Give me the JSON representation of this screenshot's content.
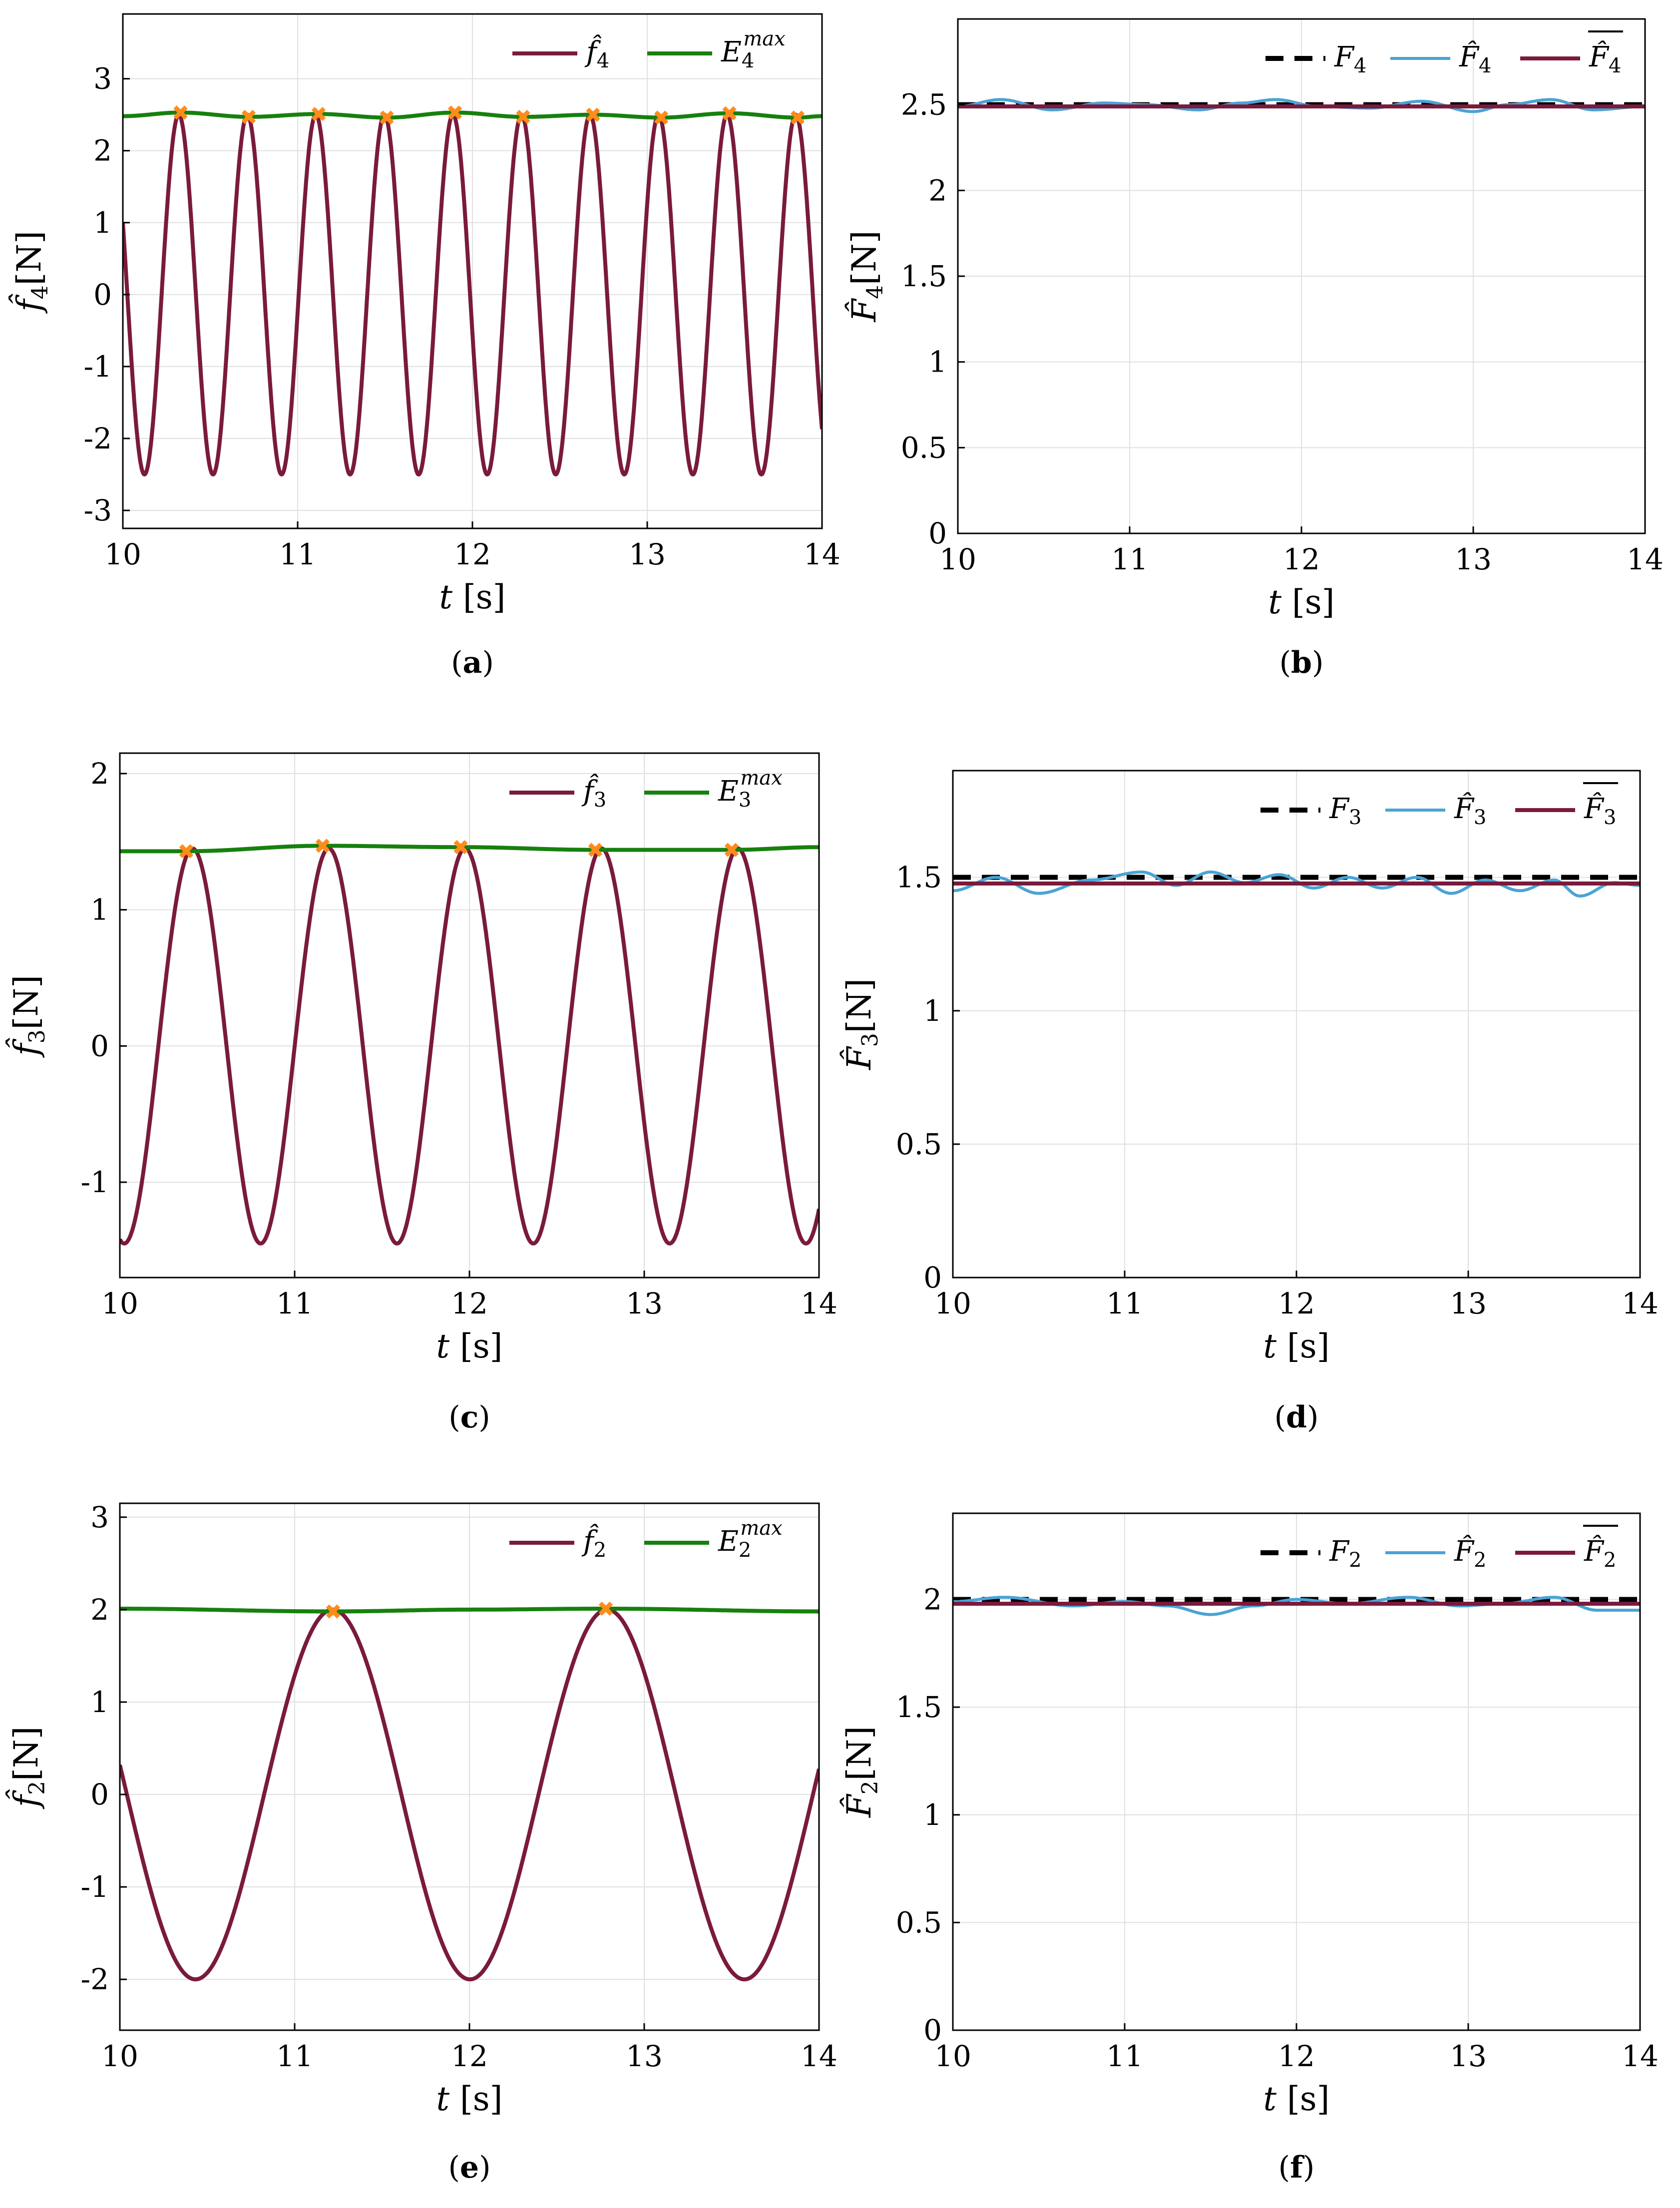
{
  "colors": {
    "force": "#7a1a3d",
    "envelope": "#17800e",
    "peak_marker": "#ff8c1a",
    "reference": "#000000",
    "estimate": "#4aa3d4",
    "mean": "#7a1a3d",
    "grid": "#e0e0e0"
  },
  "chart_data": [
    {
      "panel": "a",
      "caption_letter": "a",
      "type": "line",
      "xlabel_var": "t",
      "xlabel_unit": "[s]",
      "ylabel_main": "f̂",
      "ylabel_sub": "4",
      "ylabel_unit": "[N]",
      "xlim": [
        10,
        14
      ],
      "ylim": [
        -3.25,
        3.9
      ],
      "xticks": [
        "10",
        "11",
        "12",
        "13",
        "14"
      ],
      "yticks": [
        "-3",
        "-2",
        "-1",
        "0",
        "1",
        "2",
        "3"
      ],
      "grid": true,
      "legend_position": "top-right",
      "series": [
        {
          "name": "f̂4",
          "kind": "sinusoid",
          "amplitude": 2.5,
          "frequency_hz": 2.55,
          "x_start": 10,
          "y_start": 1.0,
          "x_end": 14,
          "y_end": -1.65,
          "color_key": "force"
        },
        {
          "name": "E4^max",
          "kind": "envelope",
          "x": [
            10,
            10.33,
            10.72,
            11.12,
            11.51,
            11.9,
            12.29,
            12.69,
            13.08,
            13.47,
            13.86,
            14
          ],
          "y": [
            2.48,
            2.53,
            2.47,
            2.51,
            2.46,
            2.53,
            2.47,
            2.5,
            2.46,
            2.52,
            2.46,
            2.48
          ],
          "color_key": "envelope"
        }
      ],
      "peaks": {
        "x": [
          10.33,
          10.72,
          11.12,
          11.51,
          11.9,
          12.29,
          12.69,
          13.08,
          13.47,
          13.86
        ],
        "y": [
          2.53,
          2.47,
          2.51,
          2.46,
          2.53,
          2.47,
          2.5,
          2.46,
          2.52,
          2.46
        ]
      },
      "legend": [
        "f̂4",
        "E4max"
      ]
    },
    {
      "panel": "b",
      "caption_letter": "b",
      "type": "line",
      "xlabel_var": "t",
      "xlabel_unit": "[s]",
      "ylabel_main": "F̂",
      "ylabel_sub": "4",
      "ylabel_unit": "[N]",
      "xlim": [
        10,
        14
      ],
      "ylim": [
        0,
        3.0
      ],
      "xticks": [
        "10",
        "11",
        "12",
        "13",
        "14"
      ],
      "yticks": [
        "0",
        "0.5",
        "1",
        "1.5",
        "2",
        "2.5"
      ],
      "grid": true,
      "legend_position": "top-right",
      "series": [
        {
          "name": "F4",
          "kind": "dashed",
          "value": 2.5,
          "color_key": "reference"
        },
        {
          "name": "F̂4",
          "kind": "ripple",
          "base": 2.5,
          "x": [
            10,
            10.25,
            10.55,
            10.85,
            11.1,
            11.4,
            11.65,
            11.85,
            12.1,
            12.4,
            12.7,
            13.0,
            13.2,
            13.45,
            13.7,
            14
          ],
          "y": [
            2.49,
            2.53,
            2.47,
            2.51,
            2.5,
            2.47,
            2.51,
            2.53,
            2.49,
            2.48,
            2.52,
            2.46,
            2.5,
            2.53,
            2.47,
            2.49
          ],
          "color_key": "estimate"
        },
        {
          "name": "F̂4 mean",
          "kind": "constant",
          "value": 2.49,
          "color_key": "mean"
        }
      ],
      "legend": [
        "F4",
        "F̂4",
        "F̂4 (mean)"
      ]
    },
    {
      "panel": "c",
      "caption_letter": "c",
      "type": "line",
      "xlabel_var": "t",
      "xlabel_unit": "[s]",
      "ylabel_main": "f̂",
      "ylabel_sub": "3",
      "ylabel_unit": "[N]",
      "xlim": [
        10,
        14
      ],
      "ylim": [
        -1.7,
        2.15
      ],
      "xticks": [
        "10",
        "11",
        "12",
        "13",
        "14"
      ],
      "yticks": [
        "-1",
        "0",
        "1",
        "2"
      ],
      "grid": true,
      "legend_position": "top-right",
      "series": [
        {
          "name": "f̂3",
          "kind": "sinusoid",
          "amplitude": 1.45,
          "frequency_hz": 1.282,
          "x_start": 10,
          "y_start": -1.42,
          "x_end": 14,
          "y_end": -1.08,
          "color_key": "force"
        },
        {
          "name": "E3^max",
          "kind": "envelope",
          "x": [
            10,
            10.38,
            11.16,
            11.95,
            12.72,
            13.5,
            14
          ],
          "y": [
            1.43,
            1.43,
            1.47,
            1.46,
            1.44,
            1.44,
            1.46
          ],
          "color_key": "envelope"
        }
      ],
      "peaks": {
        "x": [
          10.38,
          11.16,
          11.95,
          12.72,
          13.5
        ],
        "y": [
          1.43,
          1.47,
          1.46,
          1.44,
          1.44
        ]
      },
      "legend": [
        "f̂3",
        "E3max"
      ]
    },
    {
      "panel": "d",
      "caption_letter": "d",
      "type": "line",
      "xlabel_var": "t",
      "xlabel_unit": "[s]",
      "ylabel_main": "F̂",
      "ylabel_sub": "3",
      "ylabel_unit": "[N]",
      "xlim": [
        10,
        14
      ],
      "ylim": [
        0,
        1.9
      ],
      "xticks": [
        "10",
        "11",
        "12",
        "13",
        "14"
      ],
      "yticks": [
        "0",
        "0.5",
        "1",
        "1.5"
      ],
      "grid": true,
      "legend_position": "top-right",
      "series": [
        {
          "name": "F3",
          "kind": "dashed",
          "value": 1.5,
          "color_key": "reference"
        },
        {
          "name": "F̂3",
          "kind": "ripple",
          "base": 1.48,
          "x": [
            10,
            10.25,
            10.5,
            10.8,
            11.1,
            11.3,
            11.5,
            11.7,
            11.9,
            12.1,
            12.3,
            12.5,
            12.7,
            12.9,
            13.1,
            13.3,
            13.5,
            13.65,
            13.85,
            14
          ],
          "y": [
            1.45,
            1.5,
            1.44,
            1.49,
            1.52,
            1.47,
            1.52,
            1.48,
            1.51,
            1.46,
            1.5,
            1.46,
            1.5,
            1.44,
            1.49,
            1.45,
            1.49,
            1.43,
            1.48,
            1.47
          ],
          "color_key": "estimate"
        },
        {
          "name": "F̂3 mean",
          "kind": "constant",
          "value": 1.477,
          "color_key": "mean"
        }
      ],
      "legend": [
        "F3",
        "F̂3",
        "F̂3 (mean)"
      ]
    },
    {
      "panel": "e",
      "caption_letter": "e",
      "type": "line",
      "xlabel_var": "t",
      "xlabel_unit": "[s]",
      "ylabel_main": "f̂",
      "ylabel_sub": "2",
      "ylabel_unit": "[N]",
      "xlim": [
        10,
        14
      ],
      "ylim": [
        -2.55,
        3.15
      ],
      "xticks": [
        "10",
        "11",
        "12",
        "13",
        "14"
      ],
      "yticks": [
        "-2",
        "-1",
        "0",
        "1",
        "2",
        "3"
      ],
      "grid": true,
      "legend_position": "top-right",
      "series": [
        {
          "name": "f̂2",
          "kind": "sinusoid",
          "amplitude": 2.0,
          "frequency_hz": 0.6369,
          "x_start": 10,
          "y_start": 0.32,
          "x_end": 14,
          "y_end": 0.18,
          "color_key": "force"
        },
        {
          "name": "E2^max",
          "kind": "envelope",
          "x": [
            10,
            11.22,
            12.0,
            12.78,
            14
          ],
          "y": [
            2.01,
            1.98,
            2.0,
            2.01,
            1.98
          ],
          "color_key": "envelope"
        }
      ],
      "peaks": {
        "x": [
          11.22,
          12.78
        ],
        "y": [
          1.98,
          2.01
        ]
      },
      "legend": [
        "f̂2",
        "E2max"
      ]
    },
    {
      "panel": "f",
      "caption_letter": "f",
      "type": "line",
      "xlabel_var": "t",
      "xlabel_unit": "[s]",
      "ylabel_main": "F̂",
      "ylabel_sub": "2",
      "ylabel_unit": "[N]",
      "xlim": [
        10,
        14
      ],
      "ylim": [
        0,
        2.4
      ],
      "xticks": [
        "10",
        "11",
        "12",
        "13",
        "14"
      ],
      "yticks": [
        "0",
        "0.5",
        "1",
        "1.5",
        "2"
      ],
      "grid": true,
      "legend_position": "top-right",
      "series": [
        {
          "name": "F2",
          "kind": "dashed",
          "value": 2.0,
          "color_key": "reference"
        },
        {
          "name": "F̂2",
          "kind": "ripple",
          "base": 1.98,
          "x": [
            10,
            10.3,
            10.7,
            11.0,
            11.25,
            11.5,
            11.75,
            12.0,
            12.3,
            12.65,
            12.95,
            13.2,
            13.5,
            13.75,
            14
          ],
          "y": [
            1.99,
            2.01,
            1.97,
            1.99,
            1.97,
            1.93,
            1.97,
            2.0,
            1.98,
            2.01,
            1.97,
            1.98,
            2.01,
            1.95,
            1.95
          ],
          "color_key": "estimate"
        },
        {
          "name": "F̂2 mean",
          "kind": "constant",
          "value": 1.98,
          "color_key": "mean"
        }
      ],
      "legend": [
        "F2",
        "F̂2",
        "F̂2 (mean)"
      ]
    }
  ]
}
